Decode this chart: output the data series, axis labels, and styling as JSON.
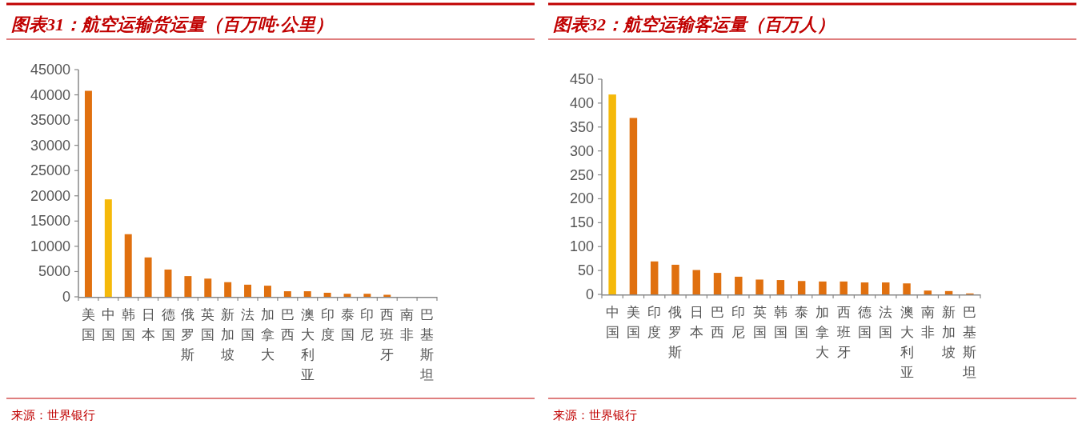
{
  "chart_data": [
    {
      "type": "bar",
      "title": "图表31：航空运输货运量（百万吨·公里）",
      "categories": [
        "美国",
        "中国",
        "韩国",
        "日本",
        "德国",
        "俄罗斯",
        "英国",
        "新加坡",
        "法国",
        "加拿大",
        "巴西",
        "澳大利亚",
        "印度",
        "泰国",
        "印尼",
        "西班牙",
        "南非",
        "巴基斯坦"
      ],
      "values": [
        40800,
        19300,
        12400,
        7800,
        5400,
        4100,
        3600,
        2900,
        2400,
        2200,
        1100,
        1100,
        800,
        600,
        600,
        400,
        null,
        null
      ],
      "colors": [
        "#e0700f",
        "#f5b90a",
        "#e0700f",
        "#e0700f",
        "#e0700f",
        "#e0700f",
        "#e0700f",
        "#e0700f",
        "#e0700f",
        "#e0700f",
        "#e0700f",
        "#e0700f",
        "#e0700f",
        "#e0700f",
        "#e0700f",
        "#e0700f",
        null,
        null
      ],
      "ylim": [
        0,
        45000
      ],
      "yticks": [
        0,
        5000,
        10000,
        15000,
        20000,
        25000,
        30000,
        35000,
        40000,
        45000
      ],
      "annotations": [
        "来源：世界银行"
      ]
    },
    {
      "type": "bar",
      "title": "图表32：航空运输客运量（百万人）",
      "categories": [
        "中国",
        "美国",
        "印度",
        "俄罗斯",
        "日本",
        "巴西",
        "印尼",
        "英国",
        "韩国",
        "泰国",
        "加拿大",
        "西班牙",
        "德国",
        "法国",
        "澳大利亚",
        "南非",
        "新加坡",
        "巴基斯坦"
      ],
      "values": [
        418,
        369,
        69,
        62,
        51,
        45,
        37,
        31,
        30,
        28,
        27,
        27,
        25,
        25,
        23,
        8,
        7,
        2
      ],
      "colors": [
        "#f5b90a",
        "#e0700f",
        "#e0700f",
        "#e0700f",
        "#e0700f",
        "#e0700f",
        "#e0700f",
        "#e0700f",
        "#e0700f",
        "#e0700f",
        "#e0700f",
        "#e0700f",
        "#e0700f",
        "#e0700f",
        "#e0700f",
        "#e0700f",
        "#e0700f",
        "#e0700f"
      ],
      "ylim": [
        0,
        450
      ],
      "yticks": [
        0,
        50,
        100,
        150,
        200,
        250,
        300,
        350,
        400,
        450
      ],
      "annotations": [
        "来源：世界银行"
      ]
    }
  ]
}
